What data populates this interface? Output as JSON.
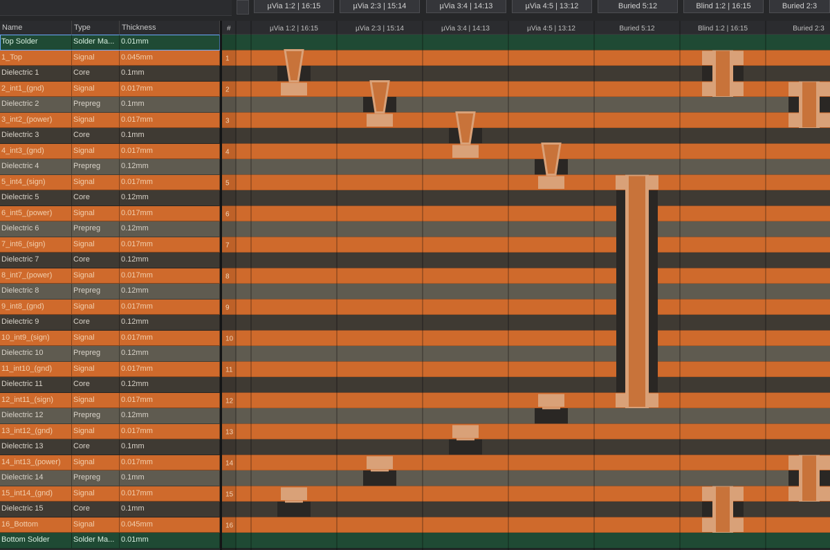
{
  "toolbar": {
    "buttons": [
      "µVia 1:2 | 16:15",
      "µVia 2:3 | 15:14",
      "µVia 3:4 | 14:13",
      "µVia 4:5 | 13:12",
      "Buried 5:12",
      "Blind 1:2 | 16:15",
      "Buried 2:3"
    ]
  },
  "table": {
    "headers": {
      "name": "Name",
      "type": "Type",
      "thickness": "Thickness"
    },
    "rows": [
      {
        "name": "Top Solder",
        "type": "Solder Ma...",
        "thickness": "0.01mm",
        "kind": "solder"
      },
      {
        "name": "1_Top",
        "type": "Signal",
        "thickness": "0.045mm",
        "kind": "signal"
      },
      {
        "name": "Dielectric 1",
        "type": "Core",
        "thickness": "0.1mm",
        "kind": "core"
      },
      {
        "name": "2_int1_(gnd)",
        "type": "Signal",
        "thickness": "0.017mm",
        "kind": "signal"
      },
      {
        "name": "Dielectric 2",
        "type": "Prepreg",
        "thickness": "0.1mm",
        "kind": "prepreg"
      },
      {
        "name": "3_int2_(power)",
        "type": "Signal",
        "thickness": "0.017mm",
        "kind": "signal"
      },
      {
        "name": "Dielectric 3",
        "type": "Core",
        "thickness": "0.1mm",
        "kind": "core"
      },
      {
        "name": "4_int3_(gnd)",
        "type": "Signal",
        "thickness": "0.017mm",
        "kind": "signal"
      },
      {
        "name": "Dielectric 4",
        "type": "Prepreg",
        "thickness": "0.12mm",
        "kind": "prepreg"
      },
      {
        "name": "5_int4_(sign)",
        "type": "Signal",
        "thickness": "0.017mm",
        "kind": "signal"
      },
      {
        "name": "Dielectric 5",
        "type": "Core",
        "thickness": "0.12mm",
        "kind": "core"
      },
      {
        "name": "6_int5_(power)",
        "type": "Signal",
        "thickness": "0.017mm",
        "kind": "signal"
      },
      {
        "name": "Dielectric 6",
        "type": "Prepreg",
        "thickness": "0.12mm",
        "kind": "prepreg"
      },
      {
        "name": "7_int6_(sign)",
        "type": "Signal",
        "thickness": "0.017mm",
        "kind": "signal"
      },
      {
        "name": "Dielectric 7",
        "type": "Core",
        "thickness": "0.12mm",
        "kind": "core"
      },
      {
        "name": "8_int7_(power)",
        "type": "Signal",
        "thickness": "0.017mm",
        "kind": "signal"
      },
      {
        "name": "Dielectric 8",
        "type": "Prepreg",
        "thickness": "0.12mm",
        "kind": "prepreg"
      },
      {
        "name": "9_int8_(gnd)",
        "type": "Signal",
        "thickness": "0.017mm",
        "kind": "signal"
      },
      {
        "name": "Dielectric 9",
        "type": "Core",
        "thickness": "0.12mm",
        "kind": "core"
      },
      {
        "name": "10_int9_(sign)",
        "type": "Signal",
        "thickness": "0.017mm",
        "kind": "signal"
      },
      {
        "name": "Dielectric 10",
        "type": "Prepreg",
        "thickness": "0.12mm",
        "kind": "prepreg"
      },
      {
        "name": "11_int10_(gnd)",
        "type": "Signal",
        "thickness": "0.017mm",
        "kind": "signal"
      },
      {
        "name": "Dielectric 11",
        "type": "Core",
        "thickness": "0.12mm",
        "kind": "core"
      },
      {
        "name": "12_int11_(sign)",
        "type": "Signal",
        "thickness": "0.017mm",
        "kind": "signal"
      },
      {
        "name": "Dielectric 12",
        "type": "Prepreg",
        "thickness": "0.12mm",
        "kind": "prepreg"
      },
      {
        "name": "13_int12_(gnd)",
        "type": "Signal",
        "thickness": "0.017mm",
        "kind": "signal"
      },
      {
        "name": "Dielectric 13",
        "type": "Core",
        "thickness": "0.1mm",
        "kind": "core"
      },
      {
        "name": "14_int13_(power)",
        "type": "Signal",
        "thickness": "0.017mm",
        "kind": "signal"
      },
      {
        "name": "Dielectric 14",
        "type": "Prepreg",
        "thickness": "0.1mm",
        "kind": "prepreg"
      },
      {
        "name": "15_int14_(gnd)",
        "type": "Signal",
        "thickness": "0.017mm",
        "kind": "signal"
      },
      {
        "name": "Dielectric 15",
        "type": "Core",
        "thickness": "0.1mm",
        "kind": "core"
      },
      {
        "name": "16_Bottom",
        "type": "Signal",
        "thickness": "0.045mm",
        "kind": "signal"
      },
      {
        "name": "Bottom Solder",
        "type": "Solder Ma...",
        "thickness": "0.01mm",
        "kind": "solder"
      }
    ]
  },
  "viz": {
    "number_header": "#",
    "columns": [
      "µVia 1:2 | 16:15",
      "µVia 2:3 | 15:14",
      "µVia 3:4 | 14:13",
      "µVia 4:5 | 13:12",
      "Buried 5:12",
      "Blind 1:2 | 16:15",
      "Buried 2:3"
    ],
    "layer_numbers": [
      "1",
      "2",
      "3",
      "4",
      "5",
      "6",
      "7",
      "8",
      "9",
      "10",
      "11",
      "12",
      "13",
      "14",
      "15",
      "16"
    ]
  },
  "colors": {
    "signal": "#cf6a2c",
    "core": "#3f3a33",
    "prepreg": "#5f5b50",
    "solder": "#1f4a34",
    "via_fill": "#c8733a",
    "via_pad": "#d9a178"
  }
}
